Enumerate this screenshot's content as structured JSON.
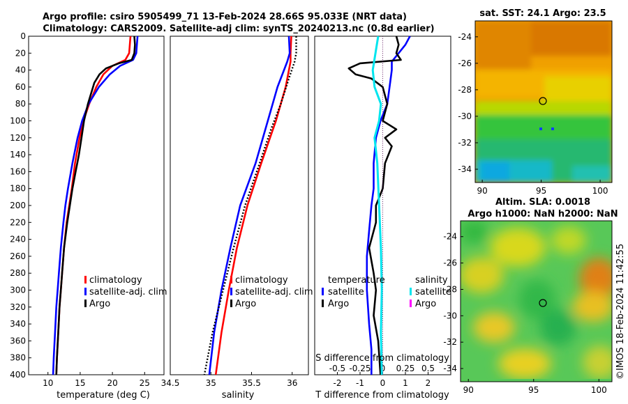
{
  "title_line1": "Argo profile: csiro 5905499_71 13-Feb-2024 28.66S 95.033E (NRT data)",
  "title_line2": "Climatology: CARS2009. Satellite-adj clim: synTS_20240213.nc (0.8d earlier)",
  "colors": {
    "clim": "#ff0000",
    "sat": "#0000ff",
    "argo": "#000000",
    "s_sat": "#00e5ee",
    "s_argo": "#ff00ff"
  },
  "chart_data": [
    {
      "type": "line",
      "name": "temperature",
      "xlabel": "temperature (deg C)",
      "xlim": [
        7,
        28
      ],
      "ylim": [
        0,
        400
      ],
      "xticks": [
        10,
        15,
        20,
        25
      ],
      "yticks": [
        0,
        20,
        40,
        60,
        80,
        100,
        120,
        140,
        160,
        180,
        200,
        220,
        240,
        260,
        280,
        300,
        320,
        340,
        360,
        380,
        400
      ],
      "legend": [
        "climatology",
        "satellite-adj. clim",
        "Argo"
      ],
      "series": [
        {
          "name": "climatology",
          "color_key": "clim",
          "depth": [
            0,
            20,
            28,
            35,
            45,
            60,
            80,
            100,
            120,
            150,
            180,
            200,
            220,
            250,
            280,
            300,
            320,
            350,
            380,
            400
          ],
          "values": [
            22.8,
            22.6,
            22.0,
            20.0,
            18.6,
            17.5,
            16.4,
            15.5,
            14.9,
            14.2,
            13.7,
            13.3,
            12.9,
            12.5,
            12.2,
            12.0,
            11.8,
            11.6,
            11.4,
            11.3
          ]
        },
        {
          "name": "satellite-adj. clim",
          "color_key": "sat",
          "depth": [
            0,
            20,
            28,
            35,
            45,
            60,
            80,
            100,
            120,
            150,
            180,
            200,
            220,
            250,
            280,
            300,
            320,
            350,
            380,
            400
          ],
          "values": [
            23.9,
            23.7,
            23.2,
            21.2,
            19.6,
            17.9,
            16.3,
            15.3,
            14.6,
            13.8,
            13.1,
            12.7,
            12.4,
            12.0,
            11.7,
            11.5,
            11.3,
            11.1,
            10.9,
            10.8
          ]
        },
        {
          "name": "Argo",
          "color_key": "argo",
          "depth": [
            0,
            10,
            20,
            28,
            32,
            38,
            45,
            55,
            65,
            80,
            100,
            120,
            140,
            160,
            180,
            200,
            220,
            250,
            280,
            300,
            320,
            350,
            380,
            400
          ],
          "values": [
            23.4,
            23.5,
            23.4,
            23.0,
            21.0,
            19.0,
            18.0,
            17.2,
            16.8,
            16.2,
            15.6,
            15.2,
            14.8,
            14.3,
            13.8,
            13.4,
            13.0,
            12.5,
            12.2,
            12.0,
            11.8,
            11.6,
            11.4,
            11.3
          ]
        }
      ]
    },
    {
      "type": "line",
      "name": "salinity",
      "xlabel": "salinity",
      "xlim": [
        34.5,
        36.2
      ],
      "ylim": [
        0,
        400
      ],
      "xticks": [
        34.5,
        35,
        35.5,
        36
      ],
      "xticklabels": [
        "34.5",
        "35",
        "35.5",
        "36"
      ],
      "legend": [
        "climatology",
        "satellite-adj. clim",
        "Argo"
      ],
      "series": [
        {
          "name": "climatology",
          "color_key": "clim",
          "depth": [
            0,
            20,
            30,
            60,
            100,
            150,
            200,
            250,
            300,
            350,
            400
          ],
          "values": [
            35.99,
            35.98,
            35.98,
            35.92,
            35.8,
            35.62,
            35.45,
            35.32,
            35.22,
            35.13,
            35.06
          ]
        },
        {
          "name": "satellite-adj. clim",
          "color_key": "sat",
          "depth": [
            0,
            20,
            30,
            60,
            100,
            150,
            200,
            250,
            300,
            350,
            400
          ],
          "values": [
            35.96,
            35.97,
            35.94,
            35.82,
            35.7,
            35.55,
            35.36,
            35.24,
            35.13,
            35.04,
            34.98
          ]
        },
        {
          "name": "Argo",
          "color_key": "argo",
          "depth": [
            0,
            20,
            30,
            50,
            80,
            110,
            150,
            200,
            250,
            300,
            350,
            400
          ],
          "values": [
            36.05,
            36.05,
            36.03,
            35.96,
            35.86,
            35.74,
            35.6,
            35.42,
            35.28,
            35.15,
            35.02,
            34.92
          ],
          "dotted": true
        }
      ]
    },
    {
      "type": "line",
      "name": "differences",
      "xlabel": "T difference from climatology",
      "top_xlabel": "S difference from climatology",
      "xlim": [
        -3,
        3
      ],
      "ylim": [
        0,
        400
      ],
      "xticks": [
        -2,
        -1,
        0,
        1,
        2
      ],
      "top_xticks": [
        -0.5,
        -0.25,
        0,
        0.25,
        0.5
      ],
      "top_xticklabels": [
        "-0.5",
        "-0.25",
        "0",
        "0.25",
        "0.5"
      ],
      "legend_t_title": "temperature",
      "legend_s_title": "salinity",
      "legend": [
        "satellite",
        "Argo",
        "satellite",
        "Argo"
      ],
      "series": [
        {
          "name": "T satellite",
          "color_key": "sat",
          "depth": [
            0,
            10,
            20,
            30,
            40,
            60,
            80,
            100,
            120,
            150,
            180,
            200,
            230,
            260,
            300,
            340,
            370,
            400
          ],
          "values": [
            1.2,
            1.0,
            0.7,
            0.4,
            0.4,
            0.3,
            0.2,
            -0.1,
            -0.3,
            -0.4,
            -0.4,
            -0.5,
            -0.6,
            -0.7,
            -0.7,
            -0.6,
            -0.5,
            -0.5
          ]
        },
        {
          "name": "T Argo",
          "color_key": "argo",
          "depth": [
            0,
            10,
            20,
            28,
            32,
            38,
            45,
            50,
            60,
            80,
            100,
            110,
            120,
            130,
            150,
            180,
            200,
            220,
            250,
            280,
            300,
            330,
            360,
            400
          ],
          "values": [
            0.6,
            0.7,
            0.6,
            0.8,
            -1.0,
            -1.5,
            -1.2,
            -0.5,
            0.0,
            0.2,
            0.0,
            0.6,
            0.1,
            0.4,
            0.1,
            0.0,
            -0.3,
            -0.3,
            -0.6,
            -0.4,
            -0.3,
            -0.4,
            -0.2,
            -0.1
          ]
        },
        {
          "name": "S satellite",
          "color_key": "s_sat",
          "depth": [
            0,
            20,
            40,
            60,
            80,
            100,
            120,
            150,
            200,
            250,
            300,
            350,
            400
          ],
          "values": [
            -0.05,
            -0.08,
            -0.11,
            -0.09,
            -0.02,
            -0.04,
            -0.09,
            -0.06,
            -0.04,
            -0.02,
            -0.01,
            -0.02,
            -0.01
          ]
        },
        {
          "name": "S Argo",
          "color_key": "s_argo",
          "depth": [
            0,
            400
          ],
          "values": [
            0,
            0
          ]
        }
      ]
    }
  ],
  "maps": {
    "top_title": "sat. SST: 24.1 Argo: 23.5",
    "bottom_title_line1": "Altim. SLA: 0.0018",
    "bottom_title_line2": "Argo h1000: NaN h2000: NaN",
    "xticks": [
      "90",
      "95",
      "100"
    ],
    "yticks": [
      "-24",
      "-26",
      "-28",
      "-30",
      "-32",
      "-34"
    ],
    "lon_range": [
      89.4,
      101
    ],
    "lat_range": [
      -35,
      -22.8
    ]
  },
  "watermark": "©IMOS 18-Feb-2024 11:42:55"
}
